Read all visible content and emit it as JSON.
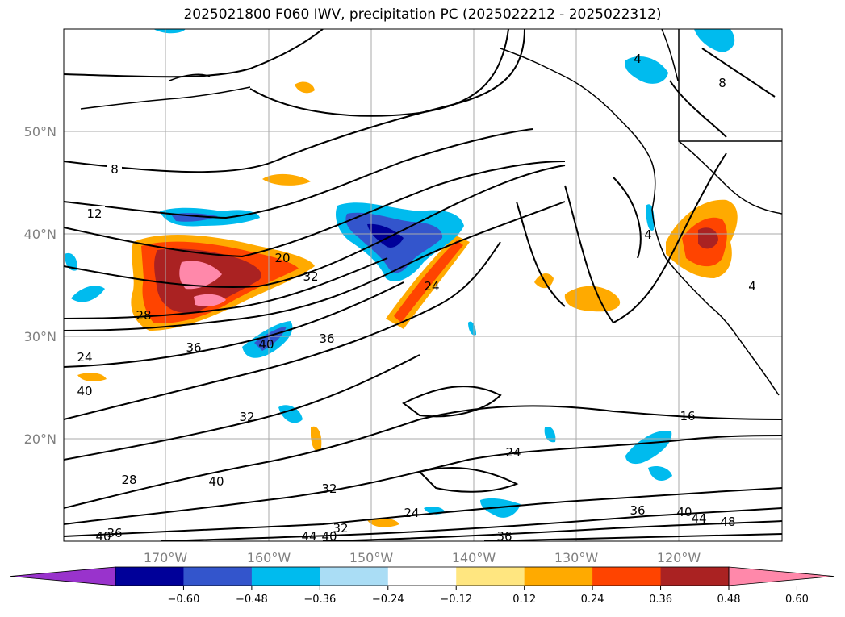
{
  "title": "2025021800 F060 IWV, precipitation PC (2025022212 - 2025022312)",
  "lat_labels": [
    "50°N",
    "40°N",
    "30°N",
    "20°N"
  ],
  "lon_labels": [
    "170°W",
    "160°W",
    "150°W",
    "140°W",
    "130°W",
    "120°W"
  ],
  "contour_labels": [
    "8",
    "12",
    "20",
    "32",
    "28",
    "36",
    "40",
    "24",
    "36",
    "40",
    "32",
    "16",
    "24",
    "28",
    "32",
    "24",
    "36",
    "40",
    "44",
    "48",
    "36",
    "40",
    "44",
    "40",
    "32",
    "36",
    "8",
    "4",
    "4",
    "4",
    "24",
    "40"
  ],
  "colorbar": {
    "ticks": [
      "−0.60",
      "−0.48",
      "−0.36",
      "−0.24",
      "−0.12",
      "0.12",
      "0.24",
      "0.36",
      "0.48",
      "0.60"
    ],
    "colors": [
      "#9933cc",
      "#000099",
      "#3355cc",
      "#00bbee",
      "#aaddf5",
      "#ffffff",
      "#ffe680",
      "#ffaa00",
      "#ff4400",
      "#aa2222",
      "#ff88aa"
    ]
  }
}
